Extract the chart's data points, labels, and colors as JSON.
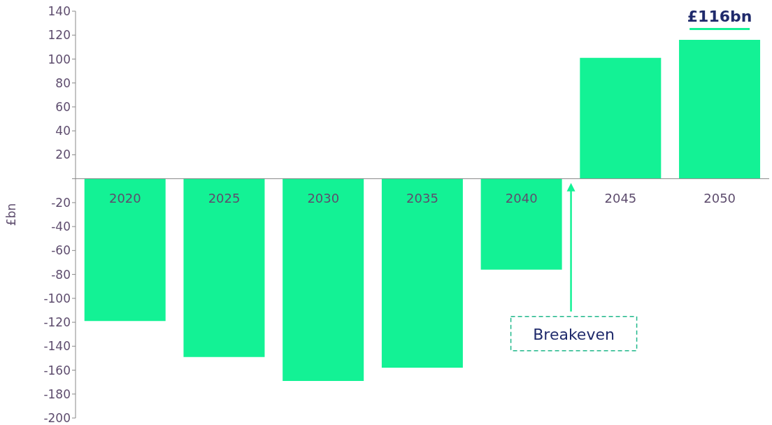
{
  "chart_data": {
    "type": "bar",
    "ylabel": "£bn",
    "categories": [
      "2020",
      "2025",
      "2030",
      "2035",
      "2040",
      "2045",
      "2050"
    ],
    "values": [
      -119,
      -149,
      -169,
      -158,
      -76,
      101,
      116
    ],
    "color": "#13f295",
    "ylim": [
      -200,
      140
    ],
    "yticks": [
      -200,
      -180,
      -160,
      -140,
      -120,
      -100,
      -80,
      -60,
      -40,
      -20,
      {
        "value": 0,
        "label": null
      },
      20,
      40,
      60,
      80,
      100,
      120,
      140
    ],
    "annotations": [
      {
        "text": "£116bn",
        "x": "2050",
        "y": 116
      },
      "Breakeven"
    ]
  }
}
